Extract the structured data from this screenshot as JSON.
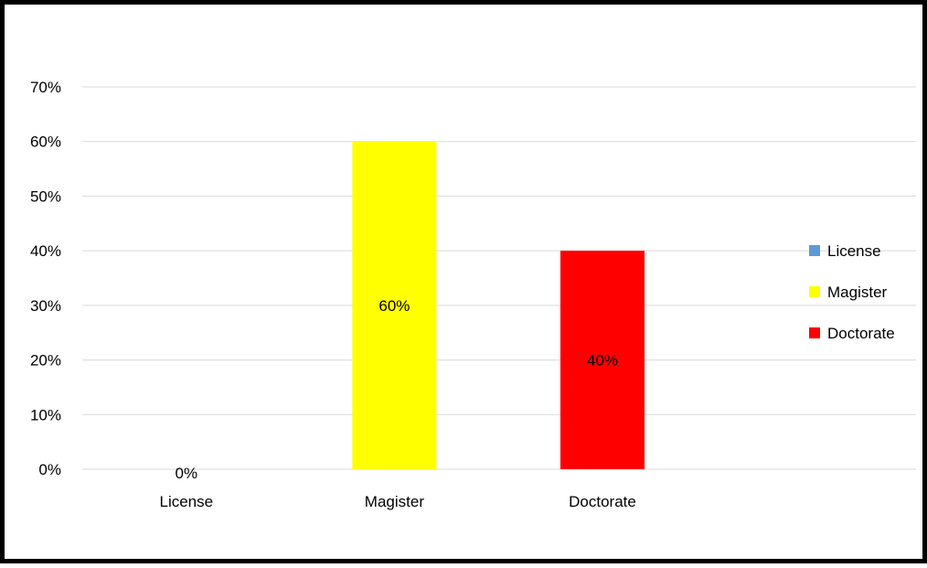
{
  "chart_data": {
    "type": "bar",
    "title": "",
    "xlabel": "",
    "ylabel": "",
    "categories": [
      "License",
      "Magister",
      "Doctorate"
    ],
    "values": [
      0,
      60,
      40
    ],
    "data_labels": [
      "0%",
      "60%",
      "40%"
    ],
    "colors": [
      "#5B9BD5",
      "#FFFF00",
      "#FF0000"
    ],
    "ylim": [
      0,
      70
    ],
    "yticks": [
      0,
      10,
      20,
      30,
      40,
      50,
      60,
      70
    ],
    "ytick_labels": [
      "0%",
      "10%",
      "20%",
      "30%",
      "40%",
      "50%",
      "60%",
      "70%"
    ],
    "grid": true,
    "legend": {
      "position": "right",
      "entries": [
        {
          "label": "License",
          "color": "#5B9BD5"
        },
        {
          "label": "Magister",
          "color": "#FFFF00"
        },
        {
          "label": "Doctorate",
          "color": "#FF0000"
        }
      ]
    }
  }
}
